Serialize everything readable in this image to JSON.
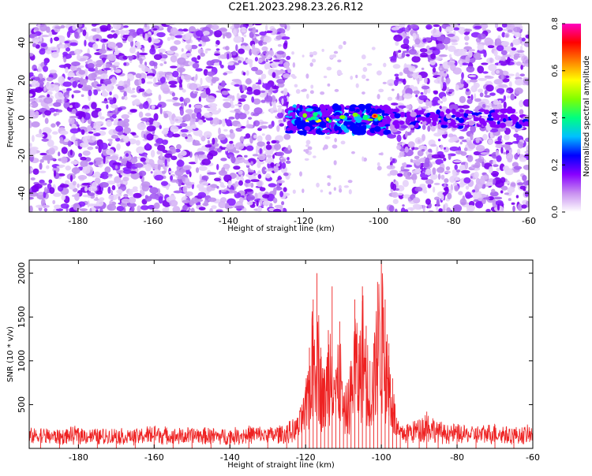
{
  "title": "C2E1.2023.298.23.26.R12",
  "chart_data": [
    {
      "type": "heatmap",
      "xlabel": "Height of straight line (km)",
      "ylabel": "Frequency (Hz)",
      "xlim": [
        -193,
        -60
      ],
      "ylim": [
        -50,
        50
      ],
      "x_ticks": [
        -180,
        -160,
        -140,
        -120,
        -100,
        -80,
        -60
      ],
      "y_ticks": [
        -40,
        -20,
        0,
        20,
        40
      ],
      "colorbar": {
        "label": "Normalized spectral amplitude",
        "range": [
          0,
          0.8
        ],
        "ticks": [
          "0.0",
          "0.2",
          "0.4",
          "0.6",
          "0.8"
        ],
        "colors": [
          "#ffffff",
          "#c890f0",
          "#8800ff",
          "#0000ff",
          "#00c0ff",
          "#00ff80",
          "#80ff00",
          "#ffff00",
          "#ff8000",
          "#ff0000",
          "#ff00c0"
        ]
      },
      "regions": [
        {
          "x_range": [
            -193,
            -124
          ],
          "content": "broadband noise",
          "amplitude": 0.1
        },
        {
          "x_range": [
            -124,
            -97
          ],
          "content": "signal band near 0 Hz",
          "frequency_band": [
            -8,
            6
          ],
          "peak_amplitude": 0.7,
          "peak_x": -101
        },
        {
          "x_range": [
            -97,
            -60
          ],
          "content": "noise with weak 0 Hz band",
          "amplitude": 0.1
        }
      ]
    },
    {
      "type": "line",
      "xlabel": "Height of straight line (km)",
      "ylabel": "SNR (10 * v/v)",
      "xlim": [
        -193,
        -60
      ],
      "ylim": [
        0,
        2150
      ],
      "x_ticks": [
        -180,
        -160,
        -140,
        -120,
        -100,
        -80,
        -60
      ],
      "y_ticks": [
        500,
        1000,
        1500,
        2000
      ],
      "color": "#ee2222",
      "series": [
        {
          "x": [
            -193,
            -190,
            -185,
            -180,
            -175,
            -170,
            -165,
            -160,
            -155,
            -150,
            -145,
            -140,
            -135,
            -130,
            -125,
            -122,
            -121,
            -120,
            -119,
            -118,
            -117,
            -116,
            -115,
            -114,
            -113,
            -112,
            -111,
            -110,
            -109,
            -108,
            -107,
            -106,
            -105,
            -104,
            -103,
            -102,
            -101,
            -100,
            -99,
            -98,
            -97,
            -96,
            -95,
            -93,
            -90,
            -88,
            -85,
            -80,
            -75,
            -70,
            -65,
            -60
          ],
          "y": [
            200,
            220,
            190,
            230,
            200,
            210,
            190,
            250,
            200,
            220,
            210,
            200,
            240,
            220,
            260,
            350,
            500,
            700,
            1150,
            1700,
            2000,
            1150,
            900,
            1350,
            1850,
            900,
            1450,
            600,
            750,
            1000,
            1700,
            1200,
            1850,
            1400,
            1000,
            1200,
            1900,
            2150,
            1700,
            1200,
            800,
            350,
            250,
            280,
            330,
            420,
            280,
            250,
            230,
            270,
            220,
            240
          ]
        }
      ]
    }
  ]
}
